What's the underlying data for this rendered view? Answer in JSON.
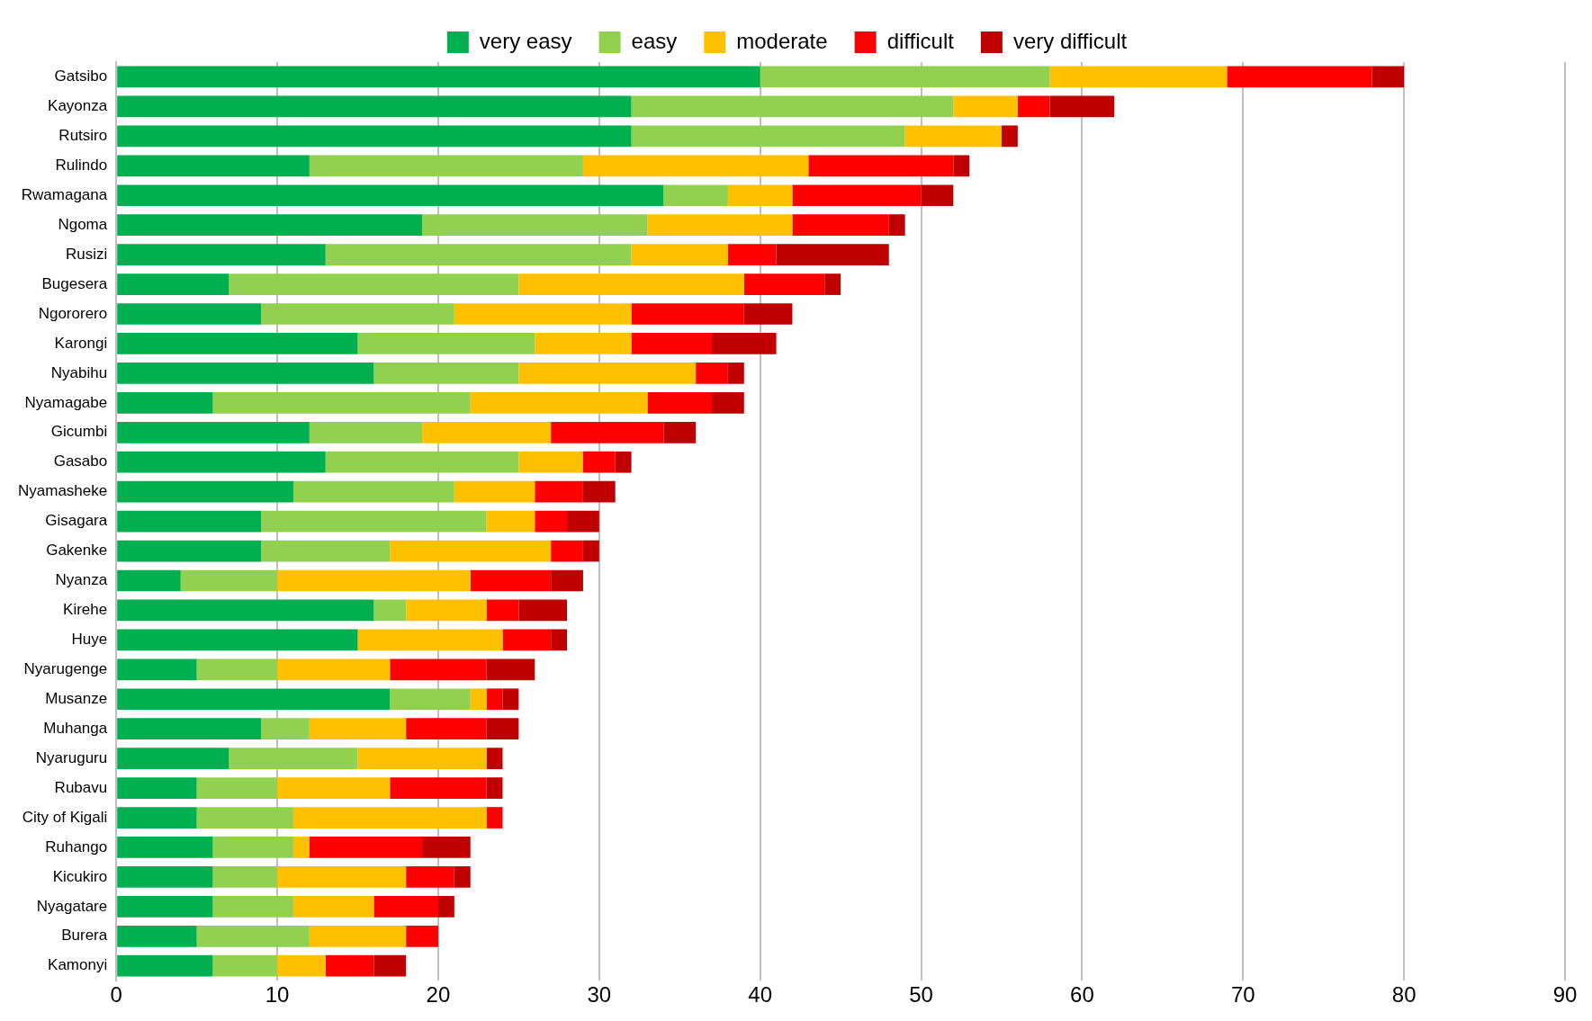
{
  "chart_data": {
    "type": "bar",
    "orientation": "horizontal",
    "stacked": true,
    "legend": "top",
    "grid": "x",
    "xlim": [
      0,
      90
    ],
    "xticks": [
      0,
      10,
      20,
      30,
      40,
      50,
      60,
      70,
      80,
      90
    ],
    "categories": [
      "Gatsibo",
      "Kayonza",
      "Rutsiro",
      "Rulindo",
      "Rwamagana",
      "Ngoma",
      "Rusizi",
      "Bugesera",
      "Ngororero",
      "Karongi",
      "Nyabihu",
      "Nyamagabe",
      "Gicumbi",
      "Gasabo",
      "Nyamasheke",
      "Gisagara",
      "Gakenke",
      "Nyanza",
      "Kirehe",
      "Huye",
      "Nyarugenge",
      "Musanze",
      "Muhanga",
      "Nyaruguru",
      "Rubavu",
      "City of Kigali",
      "Ruhango",
      "Kicukiro",
      "Nyagatare",
      "Burera",
      "Kamonyi"
    ],
    "series": [
      {
        "name": "very easy",
        "color": "#00b050",
        "values": [
          40,
          32,
          32,
          12,
          34,
          19,
          13,
          7,
          9,
          15,
          16,
          6,
          12,
          13,
          11,
          9,
          9,
          4,
          16,
          15,
          5,
          17,
          9,
          7,
          5,
          5,
          6,
          6,
          6,
          5,
          6
        ]
      },
      {
        "name": "easy",
        "color": "#92d050",
        "values": [
          18,
          20,
          17,
          17,
          4,
          14,
          19,
          18,
          12,
          11,
          9,
          16,
          7,
          12,
          10,
          14,
          8,
          6,
          2,
          0,
          5,
          5,
          3,
          8,
          5,
          6,
          5,
          4,
          5,
          7,
          4
        ]
      },
      {
        "name": "moderate",
        "color": "#ffc000",
        "values": [
          11,
          4,
          6,
          14,
          4,
          9,
          6,
          14,
          11,
          6,
          11,
          11,
          8,
          4,
          5,
          3,
          10,
          12,
          5,
          9,
          7,
          1,
          6,
          8,
          7,
          12,
          1,
          8,
          5,
          6,
          3
        ]
      },
      {
        "name": "difficult",
        "color": "#ff0000",
        "values": [
          9,
          2,
          0,
          9,
          8,
          6,
          3,
          5,
          7,
          5,
          2,
          4,
          7,
          2,
          3,
          2,
          2,
          5,
          2,
          3,
          6,
          1,
          5,
          0,
          6,
          1,
          7,
          3,
          4,
          2,
          3
        ]
      },
      {
        "name": "very difficult",
        "color": "#c00000",
        "values": [
          2,
          4,
          1,
          1,
          2,
          1,
          7,
          1,
          3,
          4,
          1,
          2,
          2,
          1,
          2,
          2,
          1,
          2,
          3,
          1,
          3,
          1,
          2,
          1,
          1,
          0,
          3,
          1,
          1,
          0,
          2
        ]
      }
    ]
  }
}
